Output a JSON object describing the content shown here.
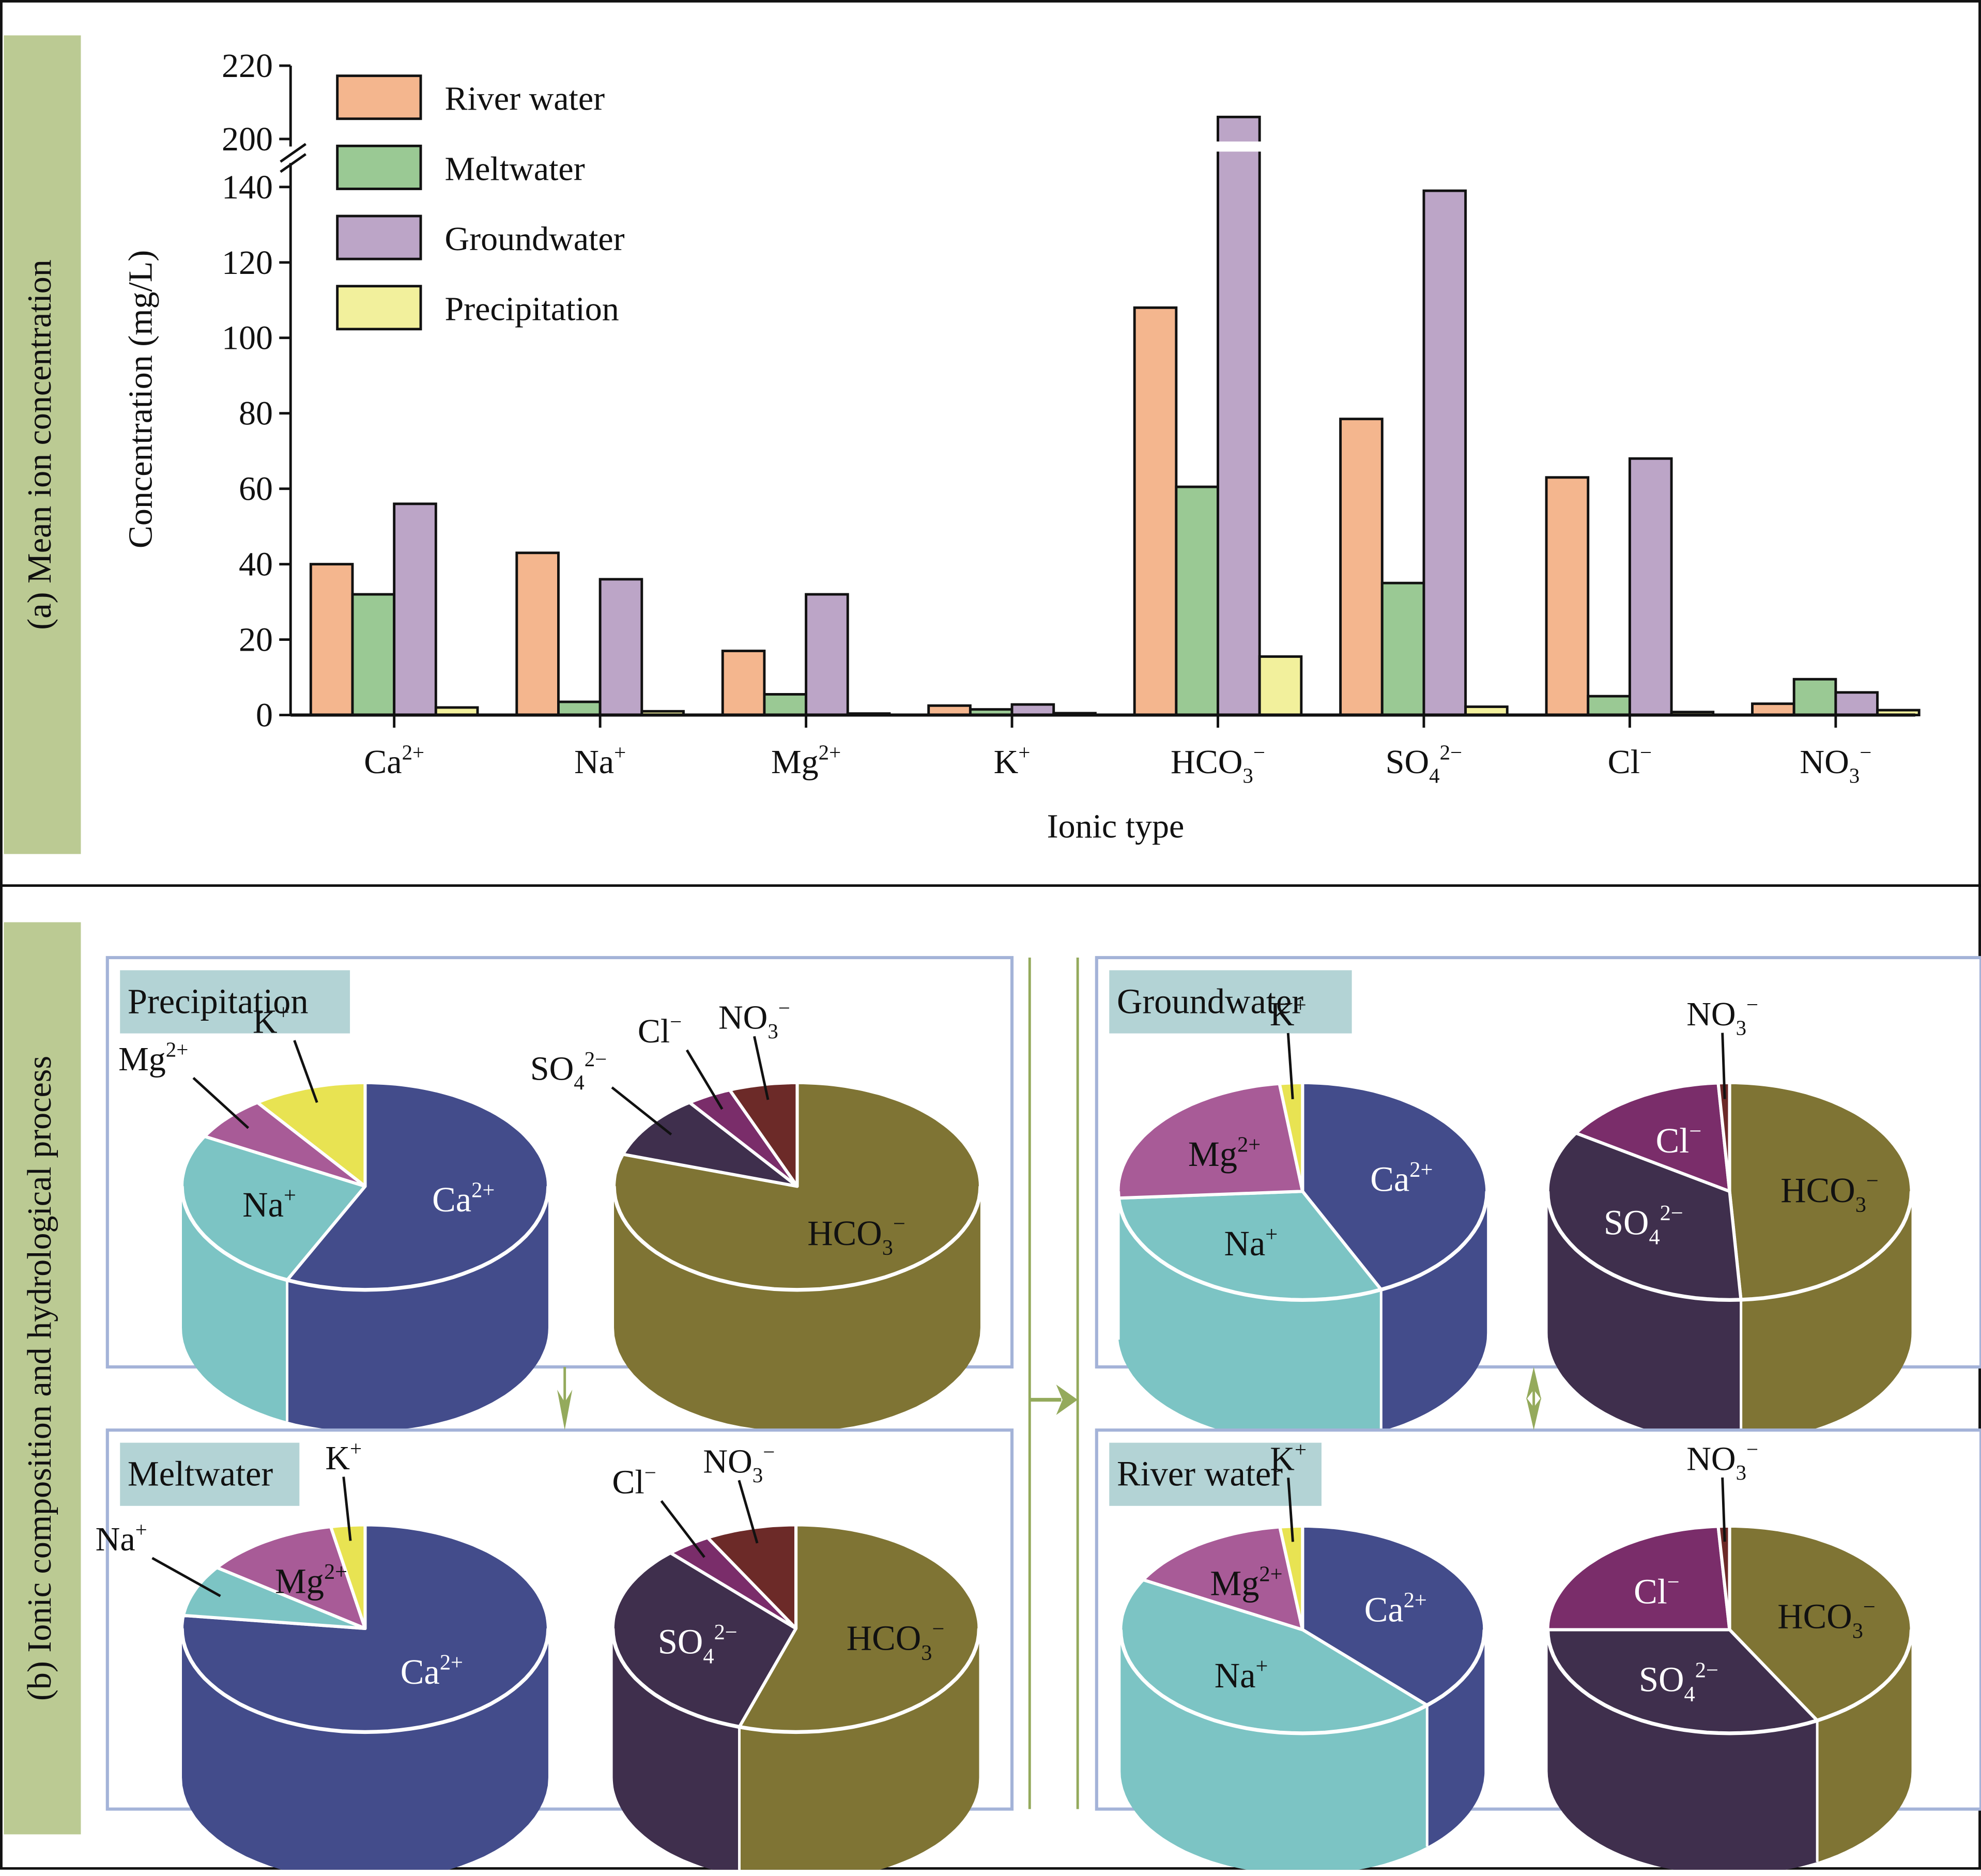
{
  "colors": {
    "river": "#f4b68e",
    "melt": "#9ac994",
    "ground": "#bca5c7",
    "precip": "#f2f09c",
    "side_tab": "#bbca93",
    "panel_border": "#a4b3d8",
    "title_tab": "#b3d3d5",
    "arrow": "#94aa5c",
    "Ca": "#434c8b",
    "Na": "#7cc4c4",
    "Mg": "#a85b97",
    "K": "#e8e352",
    "HCO3": "#7f7434",
    "SO4": "#3f2f4d",
    "Cl": "#7a2d6a",
    "NO3": "#6c2a28"
  },
  "panel_a": {
    "side_label": "(a) Mean ion concentration"
  },
  "panel_b": {
    "side_label": "(b) Ionic composition and hydrological process"
  },
  "chart_data": [
    {
      "type": "bar",
      "title": "",
      "xlabel": "Ionic type",
      "ylabel": "Concentration (mg/L)",
      "ylim": [
        0,
        220
      ],
      "axis_break": [
        145,
        200
      ],
      "yticks": [
        0,
        20,
        40,
        60,
        80,
        100,
        120,
        140,
        200,
        220
      ],
      "categories": [
        "Ca",
        "Na",
        "Mg",
        "K",
        "HCO3",
        "SO4",
        "Cl",
        "NO3"
      ],
      "category_labels": [
        {
          "base": "Ca",
          "sub": "",
          "sup": "2+"
        },
        {
          "base": "Na",
          "sub": "",
          "sup": "+"
        },
        {
          "base": "Mg",
          "sub": "",
          "sup": "2+"
        },
        {
          "base": "K",
          "sub": "",
          "sup": "+"
        },
        {
          "base": "HCO",
          "sub": "3",
          "sup": "−"
        },
        {
          "base": "SO",
          "sub": "4",
          "sup": "2−"
        },
        {
          "base": "Cl",
          "sub": "",
          "sup": "−"
        },
        {
          "base": "NO",
          "sub": "3",
          "sup": "−"
        }
      ],
      "legend_position": "top-left",
      "series": [
        {
          "name": "River water",
          "key": "river",
          "values": [
            40,
            43,
            17,
            2.5,
            108,
            78.5,
            63,
            3
          ]
        },
        {
          "name": "Meltwater",
          "key": "melt",
          "values": [
            32,
            3.5,
            5.5,
            1.5,
            60.5,
            35,
            5,
            9.5
          ]
        },
        {
          "name": "Groundwater",
          "key": "ground",
          "values": [
            56,
            36,
            32,
            2.8,
            206,
            139,
            68,
            6
          ]
        },
        {
          "name": "Precipitation",
          "key": "precip",
          "values": [
            2,
            1,
            0.4,
            0.5,
            15.5,
            2.2,
            0.8,
            1.3
          ]
        }
      ]
    },
    {
      "type": "pie",
      "title": "Precipitation",
      "pies": [
        {
          "name": "cations",
          "slices": [
            {
              "ion": "Ca",
              "base": "Ca",
              "sub": "",
              "sup": "2+",
              "value": 57
            },
            {
              "ion": "Na",
              "base": "Na",
              "sub": "",
              "sup": "+",
              "value": 26
            },
            {
              "ion": "Mg",
              "base": "Mg",
              "sub": "",
              "sup": "2+",
              "value": 7
            },
            {
              "ion": "K",
              "base": "K",
              "sub": "",
              "sup": "+",
              "value": 10
            }
          ]
        },
        {
          "name": "anions",
          "slices": [
            {
              "ion": "HCO3",
              "base": "HCO",
              "sub": "3",
              "sup": "−",
              "value": 80
            },
            {
              "ion": "SO4",
              "base": "SO",
              "sub": "4",
              "sup": "2−",
              "value": 10
            },
            {
              "ion": "Cl",
              "base": "Cl",
              "sub": "",
              "sup": "−",
              "value": 4
            },
            {
              "ion": "NO3",
              "base": "NO",
              "sub": "3",
              "sup": "−",
              "value": 6
            }
          ]
        }
      ]
    },
    {
      "type": "pie",
      "title": "Meltwater",
      "pies": [
        {
          "name": "cations",
          "slices": [
            {
              "ion": "Ca",
              "base": "Ca",
              "sub": "",
              "sup": "2+",
              "value": 77
            },
            {
              "ion": "Na",
              "base": "Na",
              "sub": "",
              "sup": "+",
              "value": 8
            },
            {
              "ion": "Mg",
              "base": "Mg",
              "sub": "",
              "sup": "2+",
              "value": 12
            },
            {
              "ion": "K",
              "base": "K",
              "sub": "",
              "sup": "+",
              "value": 3
            }
          ]
        },
        {
          "name": "anions",
          "slices": [
            {
              "ion": "HCO3",
              "base": "HCO",
              "sub": "3",
              "sup": "−",
              "value": 55
            },
            {
              "ion": "SO4",
              "base": "SO",
              "sub": "4",
              "sup": "2−",
              "value": 33
            },
            {
              "ion": "Cl",
              "base": "Cl",
              "sub": "",
              "sup": "−",
              "value": 4
            },
            {
              "ion": "NO3",
              "base": "NO",
              "sub": "3",
              "sup": "−",
              "value": 8
            }
          ]
        }
      ]
    },
    {
      "type": "pie",
      "title": "Groundwater",
      "pies": [
        {
          "name": "cations",
          "slices": [
            {
              "ion": "Ca",
              "base": "Ca",
              "sub": "",
              "sup": "2+",
              "value": 43
            },
            {
              "ion": "Na",
              "base": "Na",
              "sub": "",
              "sup": "+",
              "value": 31
            },
            {
              "ion": "Mg",
              "base": "Mg",
              "sub": "",
              "sup": "2+",
              "value": 24
            },
            {
              "ion": "K",
              "base": "K",
              "sub": "",
              "sup": "+",
              "value": 2
            }
          ]
        },
        {
          "name": "anions",
          "slices": [
            {
              "ion": "HCO3",
              "base": "HCO",
              "sub": "3",
              "sup": "−",
              "value": 49
            },
            {
              "ion": "SO4",
              "base": "SO",
              "sub": "4",
              "sup": "2−",
              "value": 35
            },
            {
              "ion": "Cl",
              "base": "Cl",
              "sub": "",
              "sup": "−",
              "value": 15
            },
            {
              "ion": "NO3",
              "base": "NO",
              "sub": "3",
              "sup": "−",
              "value": 1
            }
          ]
        }
      ]
    },
    {
      "type": "pie",
      "title": "River water",
      "pies": [
        {
          "name": "cations",
          "slices": [
            {
              "ion": "Ca",
              "base": "Ca",
              "sub": "",
              "sup": "2+",
              "value": 38
            },
            {
              "ion": "Na",
              "base": "Na",
              "sub": "",
              "sup": "+",
              "value": 45
            },
            {
              "ion": "Mg",
              "base": "Mg",
              "sub": "",
              "sup": "2+",
              "value": 15
            },
            {
              "ion": "K",
              "base": "K",
              "sub": "",
              "sup": "+",
              "value": 2
            }
          ]
        },
        {
          "name": "anions",
          "slices": [
            {
              "ion": "HCO3",
              "base": "HCO",
              "sub": "3",
              "sup": "−",
              "value": 42
            },
            {
              "ion": "SO4",
              "base": "SO",
              "sub": "4",
              "sup": "2−",
              "value": 33
            },
            {
              "ion": "Cl",
              "base": "Cl",
              "sub": "",
              "sup": "−",
              "value": 24
            },
            {
              "ion": "NO3",
              "base": "NO",
              "sub": "3",
              "sup": "−",
              "value": 1
            }
          ]
        }
      ]
    }
  ],
  "flow": [
    {
      "from": "Precipitation",
      "to": "Meltwater",
      "direction": "down"
    },
    {
      "from": "left-group",
      "to": "right-group",
      "direction": "right"
    },
    {
      "from": "Groundwater",
      "to": "River water",
      "direction": "both"
    }
  ]
}
